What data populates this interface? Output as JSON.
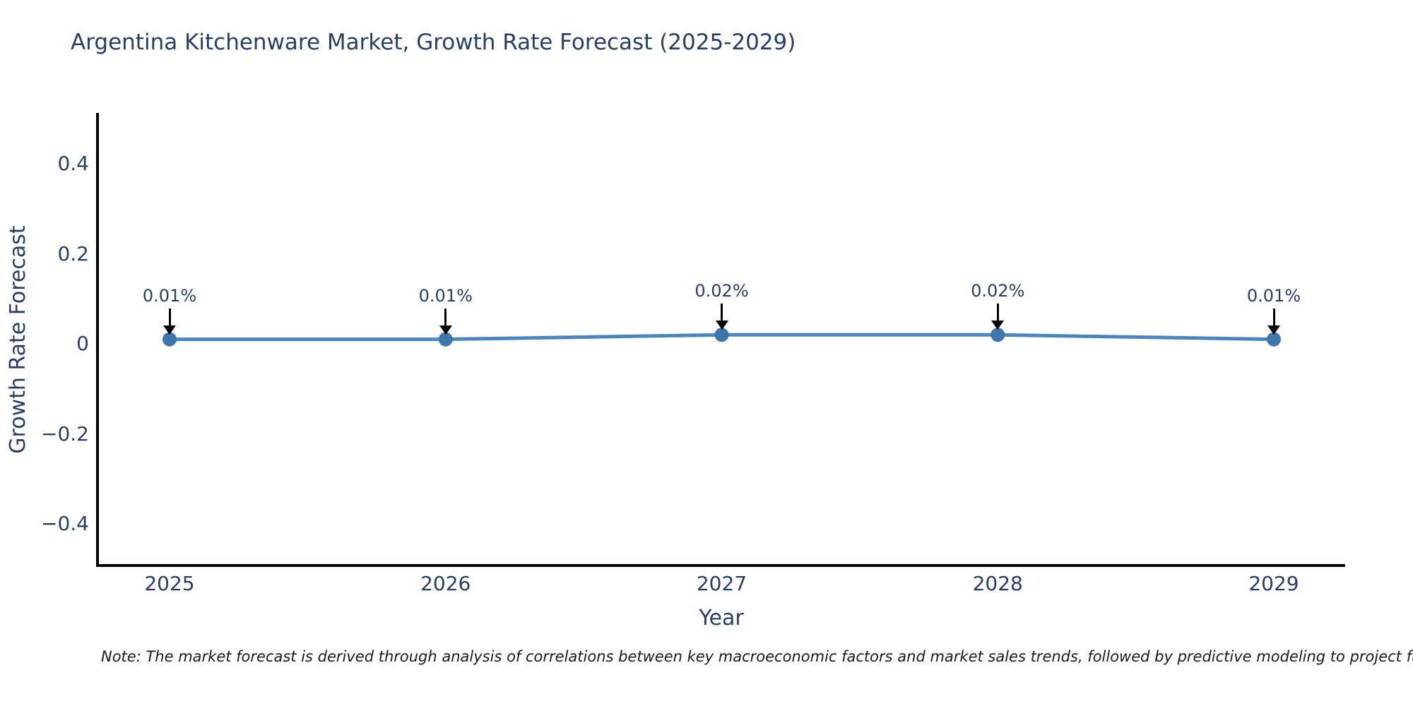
{
  "title": "Argentina Kitchenware Market, Growth Rate Forecast (2025-2029)",
  "footnote": "Note: The market forecast is derived through analysis of correlations between key macroeconomic factors and market sales trends, followed by predictive modeling to project future sales.",
  "chart_data": {
    "type": "line",
    "title": "Argentina Kitchenware Market, Growth Rate Forecast (2025-2029)",
    "x": [
      2025,
      2026,
      2027,
      2028,
      2029
    ],
    "series": [
      {
        "name": "Growth Rate Forecast",
        "values": [
          0.01,
          0.01,
          0.02,
          0.02,
          0.01
        ]
      }
    ],
    "annotations": [
      "0.01%",
      "0.01%",
      "0.02%",
      "0.02%",
      "0.01%"
    ],
    "xlabel": "Year",
    "ylabel": "Growth Rate Forecast",
    "yticks": [
      0.4,
      0.2,
      0,
      -0.2,
      -0.4
    ],
    "ytick_labels": [
      "0.4",
      "0.2",
      "0",
      "−0.2",
      "−0.4"
    ],
    "xtick_labels": [
      "2025",
      "2026",
      "2027",
      "2028",
      "2029"
    ],
    "ylim": [
      -0.49,
      0.51
    ],
    "grid": false,
    "legend": "none",
    "line_color": "#4d85ba",
    "marker_color": "#4076ac",
    "axis_color": "#000000",
    "text_color": "#2a3f5f",
    "arrow_color": "#000000",
    "background_color": "#ffffff"
  }
}
